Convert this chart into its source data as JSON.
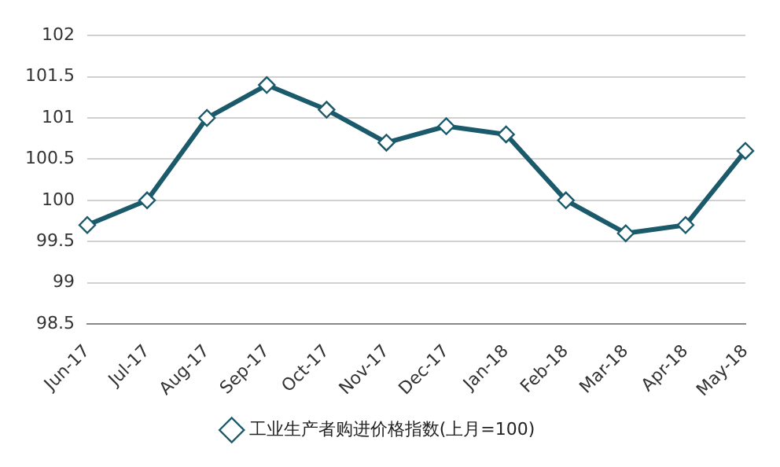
{
  "chart_data": {
    "type": "line",
    "categories": [
      "Jun-17",
      "Jul-17",
      "Aug-17",
      "Sep-17",
      "Oct-17",
      "Nov-17",
      "Dec-17",
      "Jan-18",
      "Feb-18",
      "Mar-18",
      "Apr-18",
      "May-18"
    ],
    "series": [
      {
        "name": "工业生产者购进价格指数(上月=100)",
        "color": "#1b5a6b",
        "values": [
          99.7,
          100,
          101,
          101.4,
          101.1,
          100.7,
          100.9,
          100.8,
          100,
          99.6,
          99.7,
          100.6
        ]
      }
    ],
    "ylim": [
      98.5,
      102
    ],
    "yticks": [
      98.5,
      99,
      99.5,
      100,
      100.5,
      101,
      101.5,
      102
    ],
    "grid": "y",
    "legend": "bottom",
    "marker": "diamond",
    "line_style": "solid"
  }
}
